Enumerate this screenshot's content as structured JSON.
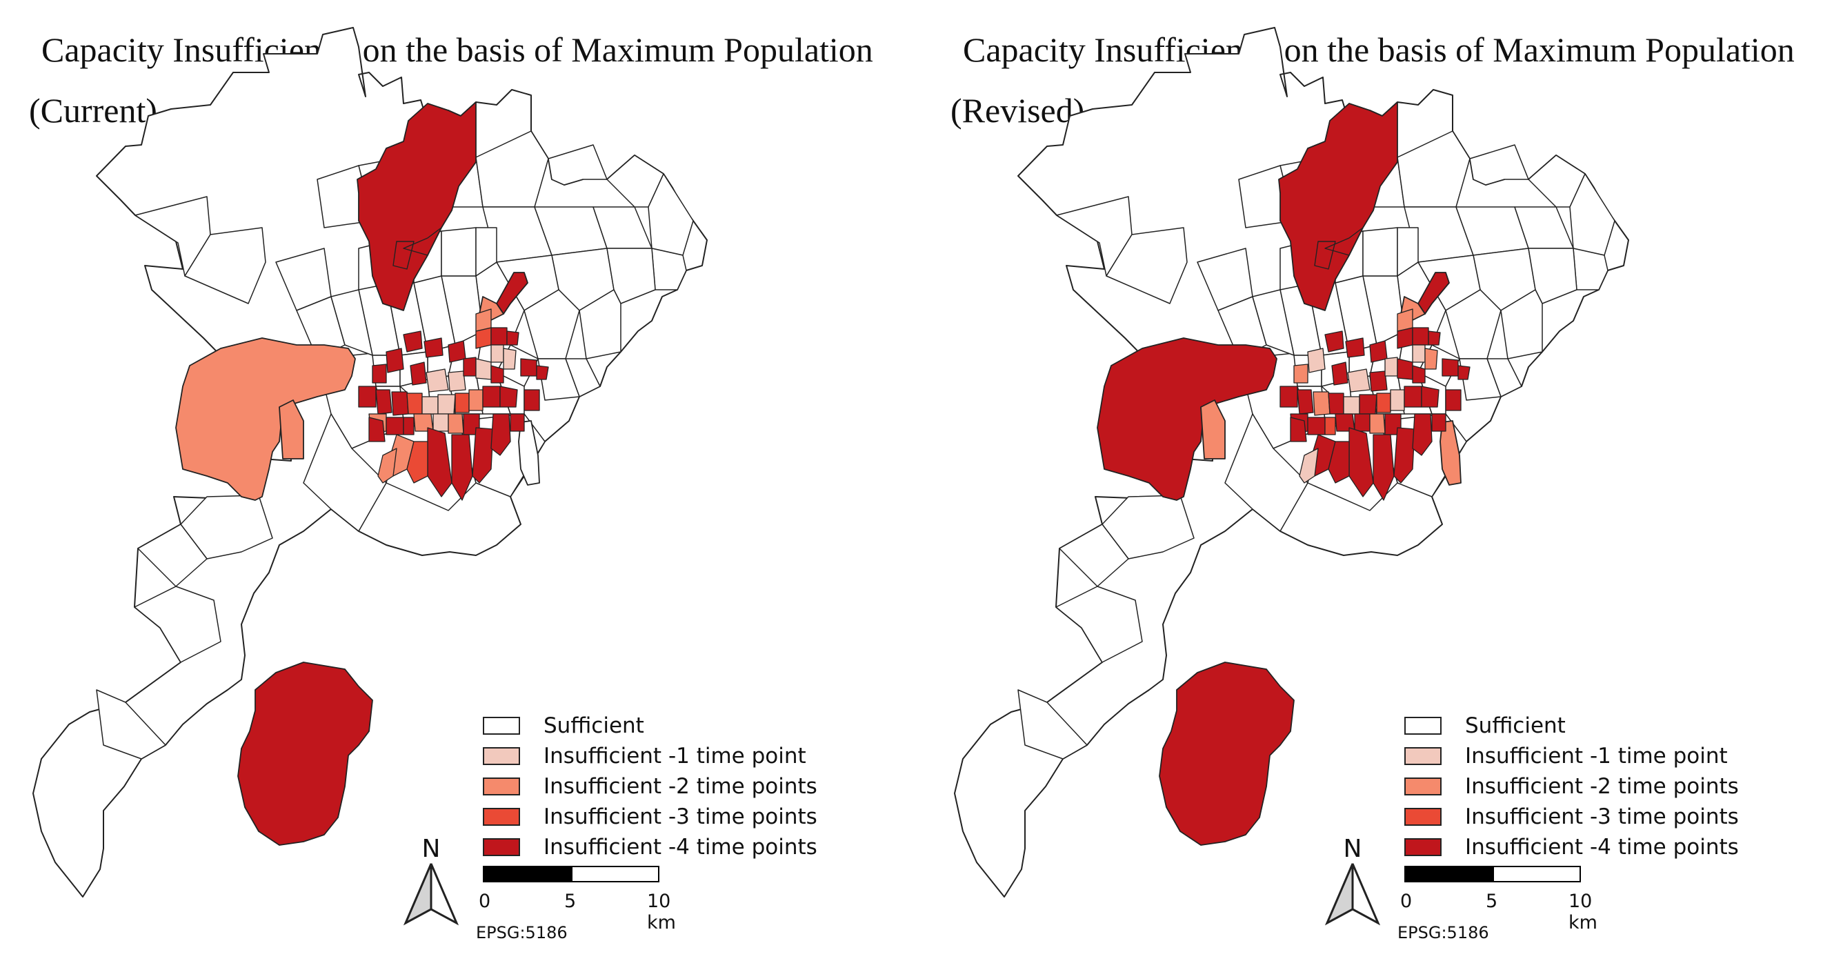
{
  "colors": {
    "sufficient": "#ffffff",
    "tp1": "#f2c9bd",
    "tp2": "#f58a6c",
    "tp3": "#ea4a35",
    "tp4": "#c0161c",
    "outline": "#222222"
  },
  "legend_labels": [
    "Sufficient",
    "Insufficient -1 time point",
    "Insufficient -2 time points",
    "Insufficient -3 time points",
    "Insufficient -4 time points"
  ],
  "north_label": "N",
  "scale": {
    "ticks": [
      "0",
      "5",
      "10 km"
    ]
  },
  "crs": "EPSG:5186",
  "panels": [
    {
      "title_line1": "Capacity Insufficiency on the basis of Maximum Population",
      "title_line2": "(Current)",
      "categories": {
        "north_cluster": "tp4",
        "west_district": "tp2",
        "west_small": "tp2",
        "south_district": "tp4",
        "ne_spike": "tp4",
        "ne_small": "tp2",
        "southeast_strip": "sufficient",
        "center_pattern": "current"
      }
    },
    {
      "title_line1": "Capacity Insufficiency on the basis of Maximum Population",
      "title_line2": "(Revised)",
      "categories": {
        "north_cluster": "tp4",
        "west_district": "tp4",
        "west_small": "tp2",
        "south_district": "tp4",
        "ne_spike": "tp4",
        "ne_small": "tp2",
        "southeast_strip": "tp2",
        "center_pattern": "revised"
      }
    }
  ]
}
